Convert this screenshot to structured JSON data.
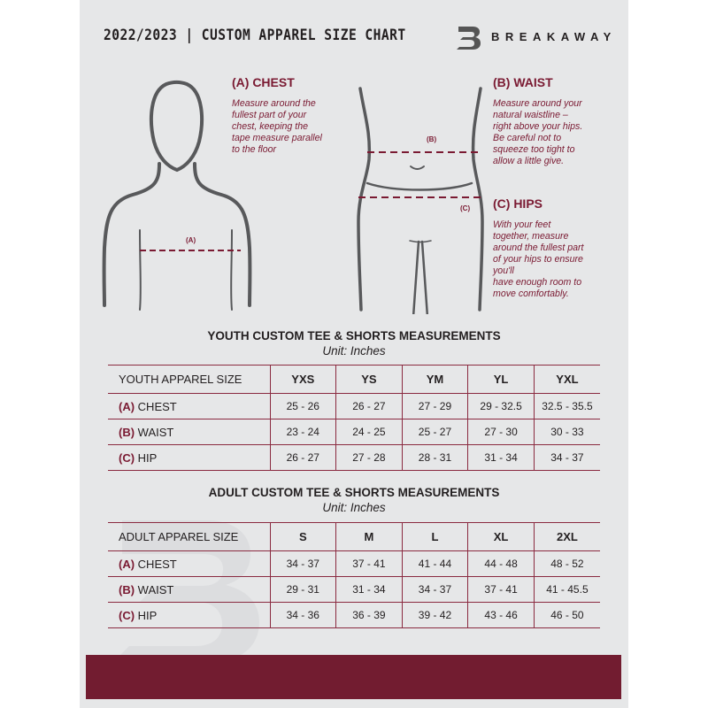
{
  "header": {
    "title": "2022/2023 | CUSTOM APPAREL SIZE CHART",
    "brand": "BREAKAWAY",
    "logo_letter": "B"
  },
  "chest": {
    "heading": "(A) CHEST",
    "lines": [
      "Measure around the",
      "fullest part of your",
      "chest, keeping the",
      "tape measure parallel",
      "to the floor"
    ],
    "marker": "(A)"
  },
  "waist": {
    "heading": "(B) WAIST",
    "lines": [
      "Measure around your",
      "natural waistline –",
      "right above your hips.",
      "Be careful not to",
      "squeeze too tight to",
      "allow a little give."
    ],
    "marker": "(B)"
  },
  "hips": {
    "heading": "(C) HIPS",
    "lines": [
      "With your feet",
      "together, measure",
      "around the fullest part",
      "of your hips to ensure",
      "you'll",
      "have enough room to",
      "move comfortably."
    ],
    "marker": "(C)"
  },
  "youth": {
    "title": "YOUTH CUSTOM TEE & SHORTS MEASUREMENTS",
    "unit": "Unit: Inches",
    "header": "YOUTH APPAREL SIZE",
    "sizes": [
      "YXS",
      "YS",
      "YM",
      "YL",
      "YXL"
    ],
    "rows": [
      {
        "letter": "(A)",
        "name": "CHEST",
        "values": [
          "25 - 26",
          "26 - 27",
          "27 - 29",
          "29 - 32.5",
          "32.5 - 35.5"
        ]
      },
      {
        "letter": "(B)",
        "name": "WAIST",
        "values": [
          "23 - 24",
          "24 - 25",
          "25 - 27",
          "27 - 30",
          "30 - 33"
        ]
      },
      {
        "letter": "(C)",
        "name": "HIP",
        "values": [
          "26 - 27",
          "27 - 28",
          "28 - 31",
          "31 - 34",
          "34 - 37"
        ]
      }
    ]
  },
  "adult": {
    "title": "ADULT CUSTOM TEE & SHORTS MEASUREMENTS",
    "unit": "Unit: Inches",
    "header": "ADULT APPAREL SIZE",
    "sizes": [
      "S",
      "M",
      "L",
      "XL",
      "2XL"
    ],
    "rows": [
      {
        "letter": "(A)",
        "name": "CHEST",
        "values": [
          "34 - 37",
          "37 - 41",
          "41 - 44",
          "44 - 48",
          "48 - 52"
        ]
      },
      {
        "letter": "(B)",
        "name": "WAIST",
        "values": [
          "29 - 31",
          "31 - 34",
          "34 - 37",
          "37 - 41",
          "41 - 45.5"
        ]
      },
      {
        "letter": "(C)",
        "name": "HIP",
        "values": [
          "34 - 36",
          "36 - 39",
          "39 - 42",
          "43 - 46",
          "46 - 50"
        ]
      }
    ]
  },
  "colors": {
    "accent": "#7a1a32",
    "footer": "#721c30",
    "page": "#e6e7e8"
  }
}
